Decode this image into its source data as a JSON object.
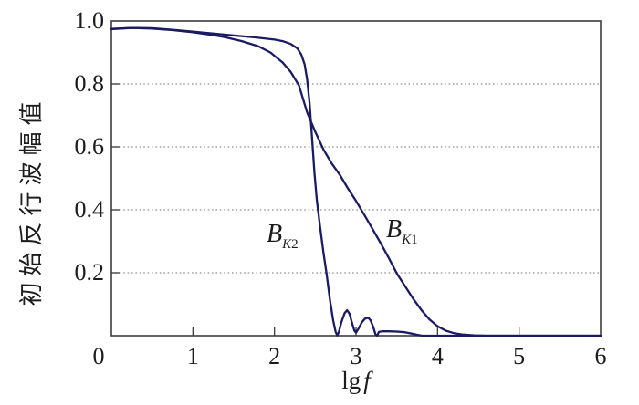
{
  "figure": {
    "background": "#ffffff",
    "curve_color": "#1b1b63",
    "frame_color": "#3c3c3c",
    "grid_color": "#909090",
    "text_color": "#1c1c1c"
  },
  "labels": {
    "ylabel": "初始反行波幅值",
    "xlabel_prefix": "lg",
    "xlabel_var": "f",
    "curve1_main": "B",
    "curve1_sub_letter": "K",
    "curve1_sub_num": "1",
    "curve2_main": "B",
    "cur2_note": "",
    "curve2_sub_letter": "K",
    "curve2_sub_num": "2"
  },
  "chart_data": {
    "type": "line",
    "title": "",
    "xlabel": "lg f",
    "ylabel": "初始反行波幅值",
    "xlim": [
      0,
      6
    ],
    "ylim": [
      0,
      1.0
    ],
    "xtick_values": [
      0,
      1,
      2,
      3,
      4,
      5,
      6
    ],
    "xtick_labels": [
      "0",
      "1",
      "2",
      "3",
      "4",
      "5",
      "6"
    ],
    "ytick_values": [
      0,
      0.2,
      0.4,
      0.6,
      0.8,
      1.0
    ],
    "ytick_labels": [
      "0",
      "0.2",
      "0.4",
      "0.6",
      "0.8",
      "1.0"
    ],
    "grid": {
      "horizontal_dotted_at": [
        0.2,
        0.4,
        0.6,
        0.8
      ]
    },
    "legend_position": "inline-curve-labels",
    "series": [
      {
        "name": "B_K1",
        "points": [
          [
            0,
            0.975
          ],
          [
            0.25,
            0.978
          ],
          [
            0.5,
            0.976
          ],
          [
            0.75,
            0.971
          ],
          [
            1.0,
            0.964
          ],
          [
            1.2,
            0.957
          ],
          [
            1.4,
            0.948
          ],
          [
            1.6,
            0.936
          ],
          [
            1.8,
            0.92
          ],
          [
            1.95,
            0.9
          ],
          [
            2.1,
            0.868
          ],
          [
            2.2,
            0.838
          ],
          [
            2.3,
            0.795
          ],
          [
            2.4,
            0.71
          ],
          [
            2.5,
            0.648
          ],
          [
            2.6,
            0.592
          ],
          [
            2.7,
            0.548
          ],
          [
            2.8,
            0.512
          ],
          [
            2.9,
            0.468
          ],
          [
            3.0,
            0.428
          ],
          [
            3.1,
            0.385
          ],
          [
            3.2,
            0.34
          ],
          [
            3.3,
            0.295
          ],
          [
            3.4,
            0.248
          ],
          [
            3.5,
            0.198
          ],
          [
            3.6,
            0.158
          ],
          [
            3.7,
            0.118
          ],
          [
            3.8,
            0.082
          ],
          [
            3.9,
            0.052
          ],
          [
            4.0,
            0.03
          ],
          [
            4.1,
            0.016
          ],
          [
            4.2,
            0.008
          ],
          [
            4.3,
            0.004
          ],
          [
            4.45,
            0.001
          ],
          [
            4.6,
            0
          ],
          [
            5.0,
            0
          ],
          [
            6.0,
            0
          ]
        ]
      },
      {
        "name": "B_K2",
        "points": [
          [
            0,
            0.974
          ],
          [
            0.25,
            0.978
          ],
          [
            0.5,
            0.977
          ],
          [
            0.75,
            0.972
          ],
          [
            1.0,
            0.966
          ],
          [
            1.25,
            0.96
          ],
          [
            1.5,
            0.954
          ],
          [
            1.75,
            0.948
          ],
          [
            2.0,
            0.941
          ],
          [
            2.1,
            0.936
          ],
          [
            2.2,
            0.927
          ],
          [
            2.28,
            0.913
          ],
          [
            2.33,
            0.893
          ],
          [
            2.37,
            0.862
          ],
          [
            2.4,
            0.815
          ],
          [
            2.43,
            0.74
          ],
          [
            2.46,
            0.63
          ],
          [
            2.49,
            0.52
          ],
          [
            2.52,
            0.43
          ],
          [
            2.56,
            0.345
          ],
          [
            2.6,
            0.265
          ],
          [
            2.64,
            0.196
          ],
          [
            2.68,
            0.115
          ],
          [
            2.72,
            0.048
          ],
          [
            2.75,
            0.012
          ],
          [
            2.77,
            0.001
          ],
          [
            2.79,
            0.012
          ],
          [
            2.82,
            0.042
          ],
          [
            2.86,
            0.072
          ],
          [
            2.89,
            0.081
          ],
          [
            2.92,
            0.07
          ],
          [
            2.95,
            0.042
          ],
          [
            2.98,
            0.016
          ],
          [
            3.0,
            0.01
          ],
          [
            3.03,
            0.022
          ],
          [
            3.07,
            0.042
          ],
          [
            3.11,
            0.054
          ],
          [
            3.15,
            0.057
          ],
          [
            3.18,
            0.048
          ],
          [
            3.21,
            0.028
          ],
          [
            3.24,
            0.004
          ],
          [
            3.26,
            0.0
          ],
          [
            3.28,
            0.012
          ],
          [
            3.32,
            0.014
          ],
          [
            3.4,
            0.014
          ],
          [
            3.5,
            0.013
          ],
          [
            3.6,
            0.011
          ],
          [
            3.68,
            0.007
          ],
          [
            3.75,
            0.003
          ],
          [
            3.81,
            0.0
          ],
          [
            4.0,
            0
          ],
          [
            4.5,
            0
          ],
          [
            5.0,
            0
          ],
          [
            6.0,
            0
          ]
        ]
      }
    ]
  }
}
